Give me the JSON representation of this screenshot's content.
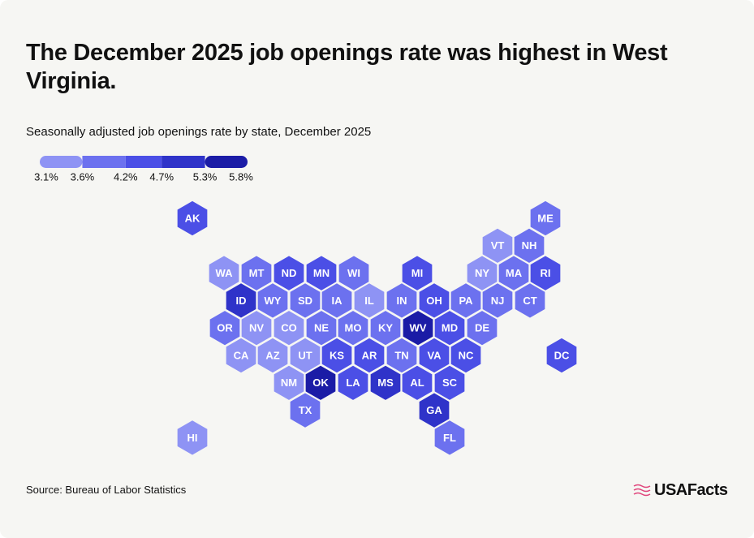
{
  "chart_data": {
    "type": "hexmap",
    "title": "The December 2025 job openings rate was highest in West Virginia.",
    "subtitle": "Seasonally adjusted job openings rate by state, December 2025",
    "source": "Source: Bureau of Labor Statistics",
    "brand": "USAFacts",
    "legend_ticks": [
      {
        "value": 3.1,
        "label": "3.1%"
      },
      {
        "value": 3.6,
        "label": "3.6%"
      },
      {
        "value": 4.2,
        "label": "4.2%"
      },
      {
        "value": 4.7,
        "label": "4.7%"
      },
      {
        "value": 5.3,
        "label": "5.3%"
      },
      {
        "value": 5.8,
        "label": "5.8%"
      }
    ],
    "colors": [
      "#8e93f4",
      "#6c71ef",
      "#4b4fe6",
      "#2f33c9",
      "#1b1ca6"
    ],
    "categories": [
      "AK",
      "ME",
      "VT",
      "NH",
      "WA",
      "MT",
      "ND",
      "MN",
      "WI",
      "MI",
      "NY",
      "MA",
      "RI",
      "ID",
      "WY",
      "SD",
      "IA",
      "IL",
      "IN",
      "OH",
      "PA",
      "NJ",
      "CT",
      "OR",
      "NV",
      "CO",
      "NE",
      "MO",
      "KY",
      "WV",
      "MD",
      "DE",
      "CA",
      "AZ",
      "UT",
      "KS",
      "AR",
      "TN",
      "VA",
      "NC",
      "DC",
      "NM",
      "OK",
      "LA",
      "MS",
      "AL",
      "SC",
      "TX",
      "GA",
      "HI",
      "FL"
    ],
    "values": [
      4.45,
      3.9,
      3.35,
      3.9,
      3.35,
      3.9,
      4.45,
      4.45,
      3.9,
      4.45,
      3.35,
      3.9,
      4.45,
      5.0,
      3.9,
      3.9,
      3.9,
      3.35,
      3.9,
      4.45,
      3.9,
      3.9,
      3.9,
      3.9,
      3.35,
      3.35,
      3.9,
      3.9,
      3.9,
      5.55,
      4.45,
      3.9,
      3.35,
      3.35,
      3.35,
      4.45,
      4.45,
      3.9,
      4.45,
      4.45,
      4.45,
      3.35,
      5.55,
      4.45,
      5.0,
      4.45,
      4.45,
      3.9,
      5.0,
      3.35,
      3.9
    ]
  }
}
